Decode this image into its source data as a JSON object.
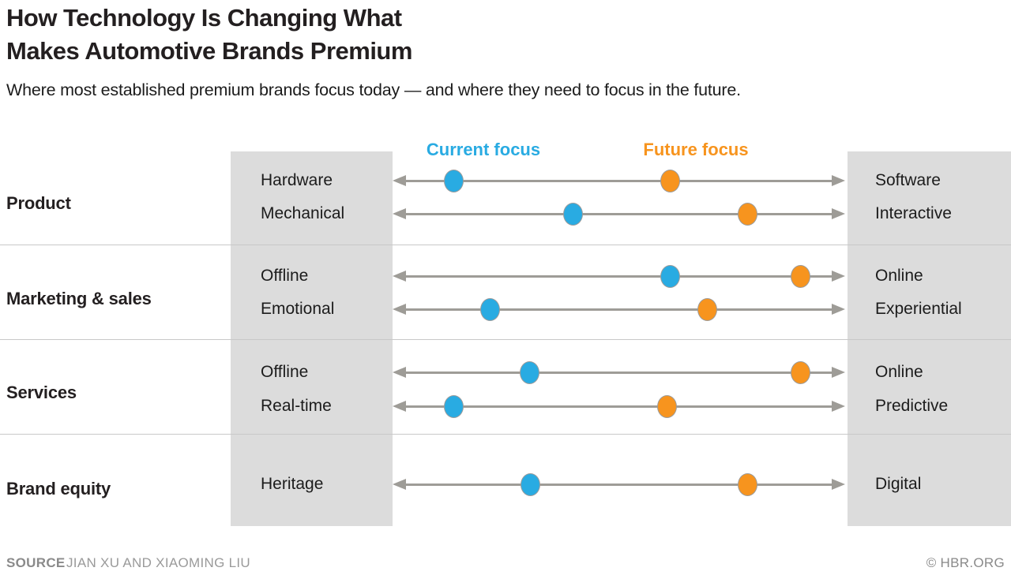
{
  "header": {
    "title": "How Technology Is Changing What\nMakes Automotive Brands Premium",
    "subtitle": "Where most established premium brands focus today — and where they need to focus in the future."
  },
  "legend": {
    "current_label": "Current focus",
    "future_label": "Future focus",
    "current_color": "#29ABE2",
    "future_color": "#F7941E"
  },
  "chart_data": {
    "type": "dumbbell",
    "description": "Each row is a left-pole to right-pole continuum with a double-headed arrow; dots mark current focus (blue) and future focus (orange) as % of distance from left pole to right pole.",
    "scale": {
      "min": 0,
      "max": 100
    },
    "legend_position": "top",
    "series_names": [
      "Current focus",
      "Future focus"
    ],
    "sections": [
      {
        "category": "Product",
        "rows": [
          {
            "left": "Hardware",
            "right": "Software",
            "current": 13.6,
            "future": 61.3
          },
          {
            "left": "Mechanical",
            "right": "Interactive",
            "current": 39.8,
            "future": 78.5
          }
        ]
      },
      {
        "category": "Marketing & sales",
        "rows": [
          {
            "left": "Offline",
            "right": "Online",
            "current": 61.3,
            "future": 90.1
          },
          {
            "left": "Emotional",
            "right": "Experiential",
            "current": 21.5,
            "future": 69.5
          }
        ]
      },
      {
        "category": "Services",
        "rows": [
          {
            "left": "Offline",
            "right": "Online",
            "current": 30.2,
            "future": 90.2
          },
          {
            "left": "Real-time",
            "right": "Predictive",
            "current": 13.6,
            "future": 60.7
          }
        ]
      },
      {
        "category": "Brand equity",
        "rows": [
          {
            "left": "Heritage",
            "right": "Digital",
            "current": 30.5,
            "future": 78.5
          }
        ]
      }
    ]
  },
  "footer": {
    "source_label": "SOURCE",
    "source_text": "JIAN XU AND XIAOMING LIU",
    "credit": "© HBR.ORG"
  }
}
